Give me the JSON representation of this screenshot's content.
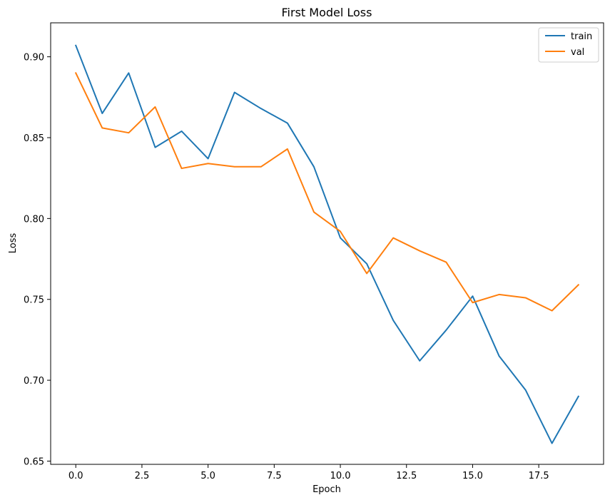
{
  "chart_data": {
    "type": "line",
    "title": "First Model Loss",
    "xlabel": "Epoch",
    "ylabel": "Loss",
    "xlim": [
      -0.95,
      19.95
    ],
    "ylim": [
      0.648,
      0.921
    ],
    "xticks": [
      0.0,
      2.5,
      5.0,
      7.5,
      10.0,
      12.5,
      15.0,
      17.5
    ],
    "xtick_labels": [
      "0.0",
      "2.5",
      "5.0",
      "7.5",
      "10.0",
      "12.5",
      "15.0",
      "17.5"
    ],
    "yticks": [
      0.65,
      0.7,
      0.75,
      0.8,
      0.85,
      0.9
    ],
    "ytick_labels": [
      "0.65",
      "0.70",
      "0.75",
      "0.80",
      "0.85",
      "0.90"
    ],
    "grid": false,
    "legend_position": "top-right",
    "x": [
      0,
      1,
      2,
      3,
      4,
      5,
      6,
      7,
      8,
      9,
      10,
      11,
      12,
      13,
      14,
      15,
      16,
      17,
      18,
      19
    ],
    "series": [
      {
        "name": "train",
        "color": "#1f77b4",
        "values": [
          0.907,
          0.865,
          0.89,
          0.844,
          0.854,
          0.837,
          0.878,
          0.868,
          0.859,
          0.832,
          0.788,
          0.772,
          0.737,
          0.712,
          0.731,
          0.752,
          0.715,
          0.694,
          0.661,
          0.69
        ]
      },
      {
        "name": "val",
        "color": "#ff7f0e",
        "values": [
          0.89,
          0.856,
          0.853,
          0.869,
          0.831,
          0.834,
          0.832,
          0.832,
          0.843,
          0.804,
          0.792,
          0.766,
          0.788,
          0.78,
          0.773,
          0.748,
          0.753,
          0.751,
          0.743,
          0.759
        ]
      }
    ]
  }
}
